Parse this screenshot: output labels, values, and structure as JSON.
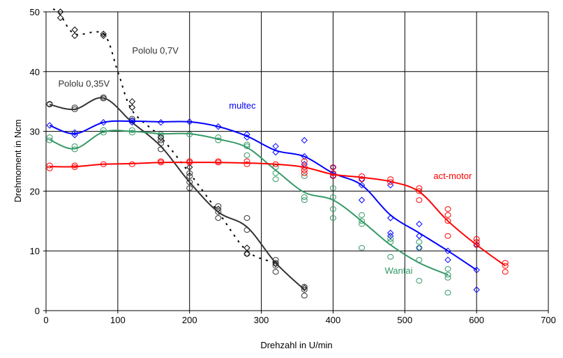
{
  "chart_data": {
    "type": "line",
    "title": "",
    "xlabel": "Drehzahl in U/min",
    "ylabel": "Drehmoment in Ncm",
    "xlim": [
      0,
      700
    ],
    "ylim": [
      0,
      50
    ],
    "xticks": [
      0,
      100,
      200,
      300,
      400,
      500,
      600,
      700
    ],
    "yticks": [
      0,
      10,
      20,
      30,
      40,
      50
    ],
    "grid": true,
    "series": [
      {
        "name": "Pololu 0,7V",
        "color": "#000000",
        "style": "dotted",
        "marker": "diamond",
        "line": [
          [
            10,
            50.5
          ],
          [
            20,
            49.5
          ],
          [
            40,
            46.3
          ],
          [
            80,
            46.3
          ],
          [
            100,
            40
          ],
          [
            120,
            33.5
          ],
          [
            160,
            29
          ],
          [
            200,
            23
          ],
          [
            240,
            16.5
          ],
          [
            280,
            10
          ],
          [
            320,
            8
          ]
        ],
        "points": [
          [
            20,
            49
          ],
          [
            20,
            50
          ],
          [
            40,
            46
          ],
          [
            40,
            47
          ],
          [
            80,
            46
          ],
          [
            80,
            46.3
          ],
          [
            120,
            34
          ],
          [
            120,
            35
          ],
          [
            160,
            29
          ],
          [
            200,
            24
          ],
          [
            240,
            17
          ],
          [
            280,
            10.5
          ],
          [
            280,
            9.5
          ],
          [
            320,
            7.8
          ],
          [
            360,
            3.8
          ]
        ]
      },
      {
        "name": "Pololu 0,35V",
        "color": "#333333",
        "style": "solid",
        "marker": "circle",
        "line": [
          [
            5,
            34.5
          ],
          [
            40,
            33.7
          ],
          [
            80,
            35.6
          ],
          [
            120,
            31.5
          ],
          [
            160,
            27.5
          ],
          [
            200,
            21.5
          ],
          [
            240,
            16.5
          ],
          [
            280,
            14
          ],
          [
            320,
            8
          ],
          [
            360,
            3.5
          ]
        ],
        "points": [
          [
            5,
            34.5
          ],
          [
            5,
            34.6
          ],
          [
            40,
            33.7
          ],
          [
            40,
            34
          ],
          [
            80,
            35.5
          ],
          [
            80,
            35.7
          ],
          [
            120,
            31.8
          ],
          [
            120,
            32.1
          ],
          [
            160,
            27
          ],
          [
            160,
            28
          ],
          [
            160,
            28.5
          ],
          [
            160,
            29
          ],
          [
            200,
            20.5
          ],
          [
            200,
            21.5
          ],
          [
            200,
            22.5
          ],
          [
            200,
            23
          ],
          [
            240,
            15.5
          ],
          [
            240,
            16.5
          ],
          [
            240,
            17.5
          ],
          [
            280,
            9.5
          ],
          [
            280,
            13.5
          ],
          [
            280,
            15.5
          ],
          [
            320,
            6.5
          ],
          [
            320,
            7.5
          ],
          [
            320,
            8
          ],
          [
            320,
            8.5
          ],
          [
            360,
            2.5
          ],
          [
            360,
            3.5
          ],
          [
            360,
            4
          ]
        ]
      },
      {
        "name": "multec",
        "color": "#0000ff",
        "style": "solid",
        "marker": "diamond",
        "line": [
          [
            5,
            31
          ],
          [
            40,
            29.6
          ],
          [
            80,
            31.5
          ],
          [
            120,
            31.7
          ],
          [
            160,
            31.6
          ],
          [
            200,
            31.6
          ],
          [
            240,
            30.8
          ],
          [
            280,
            29.2
          ],
          [
            320,
            26.8
          ],
          [
            360,
            25.8
          ],
          [
            400,
            23
          ],
          [
            440,
            21
          ],
          [
            480,
            16
          ],
          [
            520,
            13
          ],
          [
            560,
            10
          ],
          [
            600,
            6.8
          ]
        ],
        "points": [
          [
            5,
            31
          ],
          [
            40,
            29.4
          ],
          [
            40,
            29.8
          ],
          [
            80,
            31.5
          ],
          [
            120,
            31.5
          ],
          [
            120,
            31.8
          ],
          [
            160,
            31.5
          ],
          [
            200,
            31.6
          ],
          [
            240,
            30.8
          ],
          [
            280,
            29
          ],
          [
            280,
            29.5
          ],
          [
            320,
            26.5
          ],
          [
            320,
            27.5
          ],
          [
            360,
            25.8
          ],
          [
            360,
            28.5
          ],
          [
            360,
            24.5
          ],
          [
            400,
            22.5
          ],
          [
            400,
            23
          ],
          [
            400,
            24
          ],
          [
            440,
            21
          ],
          [
            440,
            22
          ],
          [
            440,
            18.5
          ],
          [
            480,
            21
          ],
          [
            480,
            15.5
          ],
          [
            480,
            12.5
          ],
          [
            480,
            13
          ],
          [
            520,
            14.5
          ],
          [
            520,
            12.5
          ],
          [
            520,
            10.5
          ],
          [
            560,
            10
          ],
          [
            560,
            8.5
          ],
          [
            600,
            11
          ],
          [
            600,
            6.8
          ],
          [
            600,
            3.5
          ]
        ]
      },
      {
        "name": "Wantai",
        "color": "#339966",
        "style": "solid",
        "marker": "circle",
        "line": [
          [
            5,
            28.6
          ],
          [
            40,
            27.1
          ],
          [
            80,
            29.9
          ],
          [
            120,
            30
          ],
          [
            160,
            29.6
          ],
          [
            200,
            29.6
          ],
          [
            240,
            28.7
          ],
          [
            280,
            27.3
          ],
          [
            320,
            23.5
          ],
          [
            360,
            19.8
          ],
          [
            400,
            18.5
          ],
          [
            440,
            15
          ],
          [
            480,
            11
          ],
          [
            520,
            8
          ],
          [
            560,
            6
          ]
        ],
        "points": [
          [
            5,
            28.5
          ],
          [
            5,
            29
          ],
          [
            40,
            27
          ],
          [
            40,
            27.5
          ],
          [
            80,
            29.8
          ],
          [
            80,
            30.2
          ],
          [
            120,
            29.8
          ],
          [
            120,
            30.2
          ],
          [
            160,
            29.5
          ],
          [
            200,
            29.5
          ],
          [
            240,
            28.5
          ],
          [
            240,
            29
          ],
          [
            280,
            26
          ],
          [
            280,
            27.5
          ],
          [
            280,
            27.8
          ],
          [
            320,
            22
          ],
          [
            320,
            23
          ],
          [
            320,
            24
          ],
          [
            360,
            18.5
          ],
          [
            360,
            19
          ],
          [
            360,
            22.5
          ],
          [
            400,
            15.5
          ],
          [
            400,
            17
          ],
          [
            400,
            19
          ],
          [
            400,
            20.5
          ],
          [
            440,
            10.5
          ],
          [
            440,
            14.5
          ],
          [
            440,
            15
          ],
          [
            440,
            16
          ],
          [
            480,
            9
          ],
          [
            480,
            11.5
          ],
          [
            480,
            12
          ],
          [
            520,
            5
          ],
          [
            520,
            8.5
          ],
          [
            520,
            10.5
          ],
          [
            520,
            11.5
          ],
          [
            560,
            3
          ],
          [
            560,
            5.5
          ],
          [
            560,
            6
          ],
          [
            560,
            7
          ]
        ]
      },
      {
        "name": "act-motor",
        "color": "#ff0000",
        "style": "solid",
        "marker": "circle",
        "line": [
          [
            5,
            24.1
          ],
          [
            40,
            24.1
          ],
          [
            80,
            24.5
          ],
          [
            120,
            24.6
          ],
          [
            160,
            24.8
          ],
          [
            200,
            24.8
          ],
          [
            240,
            24.8
          ],
          [
            280,
            24.7
          ],
          [
            320,
            24.5
          ],
          [
            360,
            24
          ],
          [
            400,
            22.8
          ],
          [
            440,
            22.3
          ],
          [
            480,
            21.6
          ],
          [
            520,
            19.9
          ],
          [
            560,
            15
          ],
          [
            600,
            11
          ],
          [
            640,
            7.5
          ]
        ],
        "points": [
          [
            5,
            23.8
          ],
          [
            5,
            24.3
          ],
          [
            40,
            24
          ],
          [
            40,
            24.3
          ],
          [
            80,
            24.5
          ],
          [
            120,
            24.5
          ],
          [
            160,
            24.8
          ],
          [
            160,
            25
          ],
          [
            200,
            24.8
          ],
          [
            200,
            25
          ],
          [
            240,
            24.8
          ],
          [
            240,
            25
          ],
          [
            280,
            24.5
          ],
          [
            280,
            25
          ],
          [
            320,
            24.5
          ],
          [
            360,
            23
          ],
          [
            360,
            23.5
          ],
          [
            360,
            24
          ],
          [
            360,
            25
          ],
          [
            400,
            22.5
          ],
          [
            400,
            23
          ],
          [
            400,
            24
          ],
          [
            440,
            22
          ],
          [
            440,
            22.5
          ],
          [
            480,
            21.5
          ],
          [
            480,
            22
          ],
          [
            520,
            18.5
          ],
          [
            520,
            20
          ],
          [
            520,
            20.5
          ],
          [
            560,
            12.5
          ],
          [
            560,
            15
          ],
          [
            560,
            16
          ],
          [
            560,
            17
          ],
          [
            600,
            11
          ],
          [
            600,
            11.5
          ],
          [
            600,
            12
          ],
          [
            640,
            6.5
          ],
          [
            640,
            7.5
          ],
          [
            640,
            8
          ]
        ]
      }
    ],
    "annotations": [
      {
        "text": "Pololu 0,7V",
        "series": "Pololu 0,7V",
        "at": [
          120,
          43
        ]
      },
      {
        "text": "Pololu 0,35V",
        "series": "Pololu 0,35V",
        "at": [
          17,
          37.5
        ]
      },
      {
        "text": "multec",
        "series": "multec",
        "at": [
          255,
          33.8
        ]
      },
      {
        "text": "act-motor",
        "series": "act-motor",
        "at": [
          540,
          22
        ]
      },
      {
        "text": "Wantai",
        "series": "Wantai",
        "at": [
          472,
          6.2
        ]
      }
    ]
  }
}
